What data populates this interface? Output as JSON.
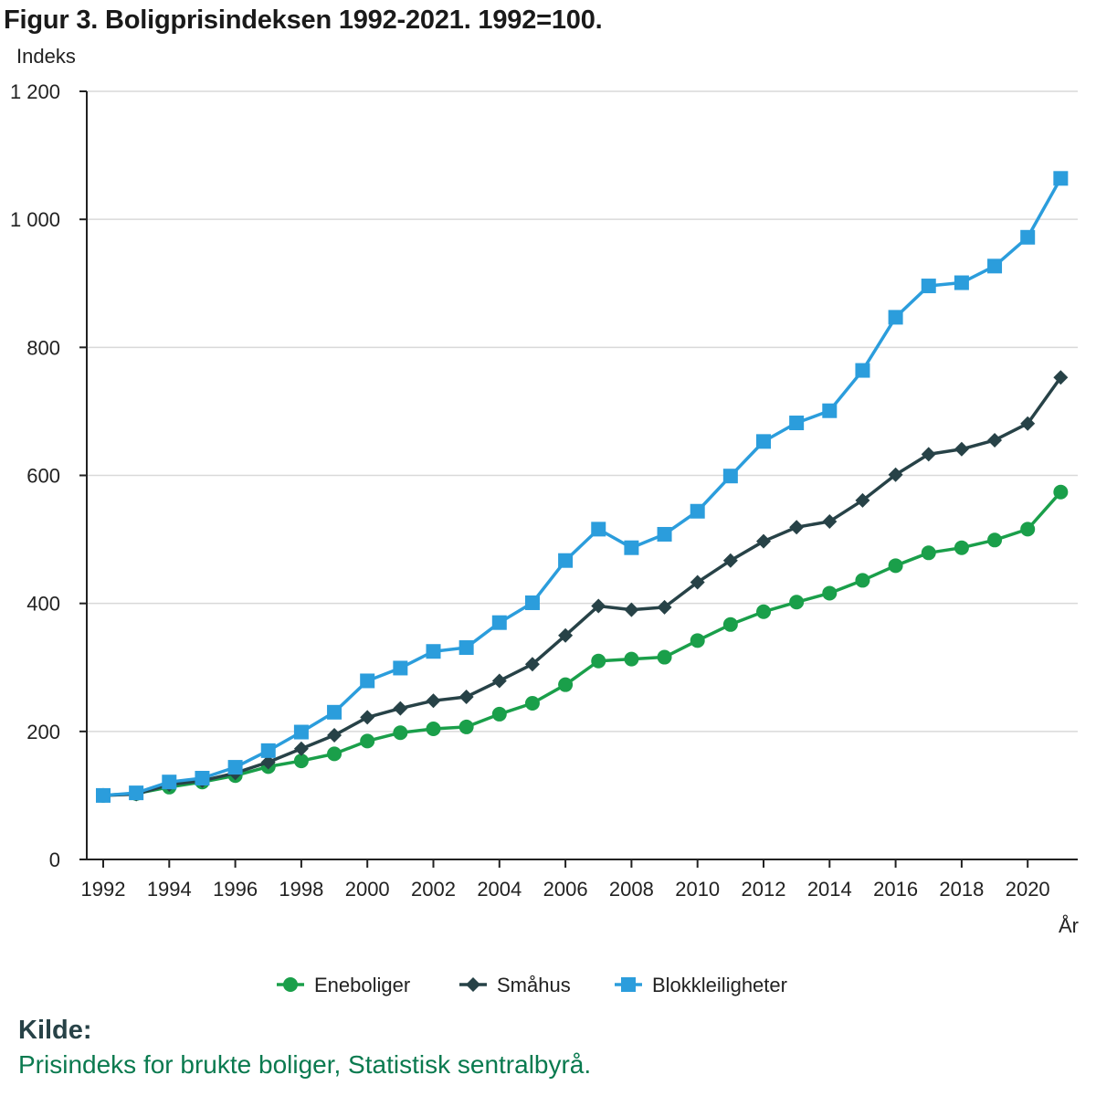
{
  "title": "Figur 3. Boligprisindeksen 1992-2021. 1992=100.",
  "source": {
    "heading": "Kilde:",
    "text": "Prisindeks for brukte boliger, Statistisk sentralbyrå."
  },
  "chart_data": {
    "type": "line",
    "title": "Figur 3. Boligprisindeksen 1992-2021. 1992=100.",
    "ylabel": "Indeks",
    "xlabel": "År",
    "ylim": [
      0,
      1200
    ],
    "yticks": [
      0,
      200,
      400,
      600,
      800,
      1000,
      1200
    ],
    "ytick_labels": [
      "0",
      "200",
      "400",
      "600",
      "800",
      "1 000",
      "1 200"
    ],
    "xlim": [
      1991.5,
      2021.5
    ],
    "xticks": [
      1992,
      1994,
      1996,
      1998,
      2000,
      2002,
      2004,
      2006,
      2008,
      2010,
      2012,
      2014,
      2016,
      2018,
      2020
    ],
    "grid": true,
    "legend_position": "bottom",
    "x": [
      1992,
      1993,
      1994,
      1995,
      1996,
      1997,
      1998,
      1999,
      2000,
      2001,
      2002,
      2003,
      2004,
      2005,
      2006,
      2007,
      2008,
      2009,
      2010,
      2011,
      2012,
      2013,
      2014,
      2015,
      2016,
      2017,
      2018,
      2019,
      2020,
      2021
    ],
    "series": [
      {
        "name": "Eneboliger",
        "color": "#1a9f4a",
        "marker": "circle",
        "values": [
          100,
          103,
          113,
          121,
          131,
          145,
          154,
          165,
          185,
          198,
          204,
          207,
          227,
          244,
          273,
          310,
          313,
          316,
          342,
          367,
          387,
          402,
          416,
          436,
          459,
          479,
          487,
          499,
          516,
          574
        ]
      },
      {
        "name": "Småhus",
        "color": "#274247",
        "marker": "diamond",
        "values": [
          100,
          102,
          117,
          123,
          135,
          152,
          173,
          194,
          222,
          236,
          248,
          254,
          279,
          305,
          350,
          396,
          390,
          394,
          433,
          467,
          497,
          519,
          528,
          561,
          601,
          633,
          641,
          655,
          681,
          753
        ]
      },
      {
        "name": "Blokkleiligheter",
        "color": "#2b9ddc",
        "marker": "square",
        "values": [
          100,
          104,
          121,
          127,
          144,
          170,
          199,
          230,
          279,
          299,
          325,
          331,
          370,
          401,
          467,
          516,
          487,
          508,
          544,
          599,
          653,
          682,
          701,
          764,
          847,
          896,
          901,
          927,
          972,
          1064
        ]
      }
    ]
  }
}
